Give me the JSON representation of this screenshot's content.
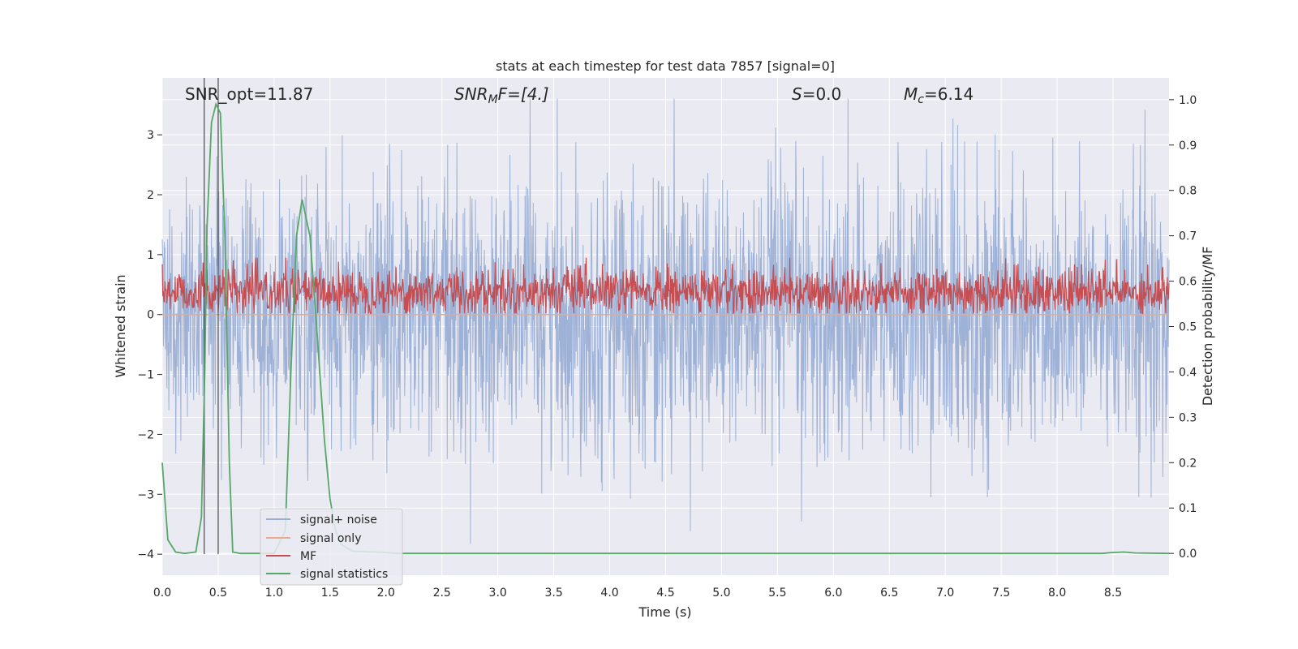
{
  "chart_data": {
    "type": "line",
    "title": "stats at each timestep for test data 7857 [signal=0]",
    "xlabel": "Time (s)",
    "ylabel": "Whitened strain",
    "ylabel_right": "Detection probability/MF",
    "xlim": [
      0.0,
      9.0
    ],
    "ylim": [
      -4.35,
      3.95
    ],
    "ylim_right": [
      -0.048,
      1.048
    ],
    "x_ticks": [
      "0.0",
      "0.5",
      "1.0",
      "1.5",
      "2.0",
      "2.5",
      "3.0",
      "3.5",
      "4.0",
      "4.5",
      "5.0",
      "5.5",
      "6.0",
      "6.5",
      "7.0",
      "7.5",
      "8.0",
      "8.5"
    ],
    "y_ticks": [
      "3",
      "2",
      "1",
      "0",
      "−1",
      "−2",
      "−3",
      "−4"
    ],
    "y_ticks_right": [
      "1.0",
      "0.9",
      "0.8",
      "0.7",
      "0.6",
      "0.5",
      "0.4",
      "0.3",
      "0.2",
      "0.1",
      "0.0"
    ],
    "grid": true,
    "legend_position": "lower-left",
    "annotations": {
      "snr_opt": "SNR_opt=11.87",
      "snr_mf_base": "SNR",
      "snr_mf_sub": "M",
      "snr_mf_rest": "F=[4.]",
      "s_sym": "S",
      "s_rest": "=0.0",
      "mc_base": "M",
      "mc_sub": "c",
      "mc_rest": "=6.14"
    },
    "vlines_x": [
      0.375,
      0.5
    ],
    "series": [
      {
        "name": "signal+ noise",
        "color": "#9aaed4",
        "description_values": "noise, roughly between -3.9 and 3.6 across full time range"
      },
      {
        "name": "signal only",
        "color": "#e8a98c",
        "values_constant": 0.0
      },
      {
        "name": "MF",
        "color": "#c44e52",
        "range": [
          0.0,
          0.95
        ]
      },
      {
        "name": "signal statistics",
        "color": "#55a868",
        "axis": "right",
        "x": [
          0.0,
          0.05,
          0.12,
          0.2,
          0.3,
          0.35,
          0.38,
          0.4,
          0.44,
          0.48,
          0.52,
          0.56,
          0.6,
          0.63,
          0.7,
          0.8,
          0.9,
          1.0,
          1.1,
          1.15,
          1.2,
          1.25,
          1.32,
          1.38,
          1.45,
          1.5,
          1.55,
          1.6,
          1.7,
          1.8,
          1.9,
          2.0,
          2.1,
          3.0,
          4.0,
          5.0,
          6.0,
          7.0,
          8.0,
          8.4,
          8.5,
          8.6,
          8.7,
          9.0
        ],
        "y": [
          0.2,
          0.03,
          0.003,
          0.0,
          0.003,
          0.08,
          0.4,
          0.72,
          0.95,
          0.99,
          0.97,
          0.7,
          0.2,
          0.003,
          0.0,
          0.0,
          0.0,
          0.0,
          0.05,
          0.4,
          0.7,
          0.78,
          0.7,
          0.5,
          0.25,
          0.12,
          0.05,
          0.02,
          0.005,
          0.004,
          0.003,
          0.002,
          0.0,
          0.0,
          0.0,
          0.0,
          0.0,
          0.0,
          0.0,
          0.0,
          0.002,
          0.003,
          0.001,
          0.0
        ]
      }
    ]
  }
}
